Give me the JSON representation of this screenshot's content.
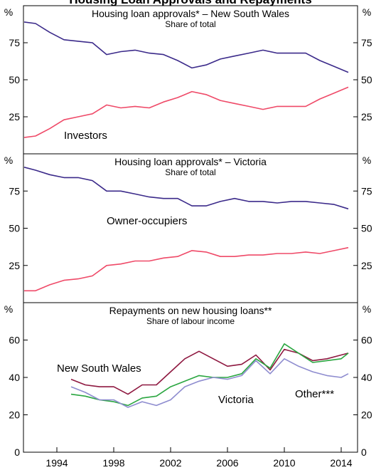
{
  "title": "Housing Loan Approvals and Repayments",
  "chart_data": [
    {
      "type": "line",
      "title": "Housing loan approvals* – New South Wales",
      "subtitle": "Share of total",
      "y_unit": "%",
      "x": [
        1991.7,
        1992.5,
        1993.5,
        1994.5,
        1995.5,
        1996.5,
        1997.5,
        1998.5,
        1999.5,
        2000.5,
        2001.5,
        2002.5,
        2003.5,
        2004.5,
        2005.5,
        2006.5,
        2007.5,
        2008.5,
        2009.5,
        2010.5,
        2011.5,
        2012.5,
        2013.5,
        2014.5
      ],
      "xlim": [
        1991.65,
        2015.15
      ],
      "ylim": [
        0,
        100
      ],
      "yticks": [
        25,
        50,
        75
      ],
      "series": [
        {
          "color": "#3b2a8a",
          "values": [
            89,
            88,
            82,
            77,
            76,
            75,
            67,
            69,
            70,
            68,
            67,
            63,
            58,
            60,
            64,
            66,
            68,
            70,
            68,
            68,
            68,
            63,
            59,
            55
          ]
        },
        {
          "name": "Investors",
          "color": "#ef4a68",
          "values": [
            11,
            12,
            17,
            23,
            25,
            27,
            33,
            31,
            32,
            31,
            35,
            38,
            42,
            40,
            36,
            34,
            32,
            30,
            32,
            32,
            32,
            37,
            41,
            45
          ]
        }
      ]
    },
    {
      "type": "line",
      "title": "Housing loan approvals* – Victoria",
      "subtitle": "Share of total",
      "y_unit": "%",
      "x": [
        1991.7,
        1992.5,
        1993.5,
        1994.5,
        1995.5,
        1996.5,
        1997.5,
        1998.5,
        1999.5,
        2000.5,
        2001.5,
        2002.5,
        2003.5,
        2004.5,
        2005.5,
        2006.5,
        2007.5,
        2008.5,
        2009.5,
        2010.5,
        2011.5,
        2012.5,
        2013.5,
        2014.5
      ],
      "xlim": [
        1991.65,
        2015.15
      ],
      "ylim": [
        0,
        100
      ],
      "yticks": [
        25,
        50,
        75
      ],
      "series": [
        {
          "name": "Owner-occupiers",
          "color": "#3b2a8a",
          "values": [
            91,
            89,
            86,
            84,
            84,
            82,
            75,
            75,
            73,
            71,
            70,
            70,
            65,
            65,
            68,
            70,
            68,
            68,
            67,
            68,
            68,
            67,
            66,
            63
          ]
        },
        {
          "color": "#ef4a68",
          "values": [
            8,
            8,
            12,
            15,
            16,
            18,
            25,
            26,
            28,
            28,
            30,
            31,
            35,
            34,
            31,
            31,
            32,
            32,
            33,
            33,
            34,
            33,
            35,
            37
          ]
        }
      ]
    },
    {
      "type": "line",
      "title": "Repayments on new housing loans**",
      "subtitle": "Share of labour income",
      "y_unit": "%",
      "x": [
        1995,
        1996,
        1997,
        1998,
        1999,
        2000,
        2001,
        2002,
        2003,
        2004,
        2005,
        2006,
        2007,
        2008,
        2009,
        2010,
        2011,
        2012,
        2013,
        2014,
        2014.5
      ],
      "xlim": [
        1991.65,
        2015.15
      ],
      "xticks": [
        1994,
        1998,
        2002,
        2006,
        2010,
        2014
      ],
      "ylim": [
        0,
        80
      ],
      "yticks": [
        0,
        20,
        40,
        60
      ],
      "series": [
        {
          "name": "New South Wales",
          "color": "#8e1840",
          "values": [
            39,
            36,
            35,
            35,
            31,
            36,
            36,
            43,
            50,
            54,
            50,
            46,
            47,
            52,
            44,
            55,
            53,
            49,
            50,
            52,
            53
          ]
        },
        {
          "name": "Victoria",
          "color": "#2aa640",
          "values": [
            31,
            30,
            28,
            27,
            25,
            29,
            30,
            35,
            38,
            41,
            40,
            40,
            42,
            50,
            45,
            58,
            53,
            48,
            49,
            50,
            53
          ]
        },
        {
          "name": "Other***",
          "color": "#8e8ccf",
          "values": [
            35,
            32,
            28,
            28,
            24,
            27,
            25,
            28,
            35,
            38,
            40,
            39,
            41,
            49,
            42,
            50,
            46,
            43,
            41,
            40,
            42
          ]
        }
      ]
    }
  ]
}
